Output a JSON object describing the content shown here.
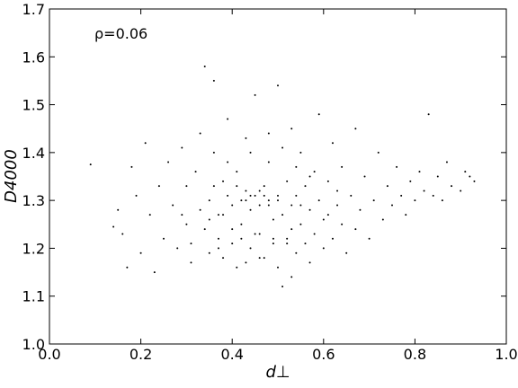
{
  "chart_data": {
    "type": "scatter",
    "xlabel": "d⊥",
    "ylabel": "D4000",
    "annotation": "ρ=0.06",
    "color": "#000000",
    "xlim": [
      0,
      1
    ],
    "ylim": [
      1,
      1.7
    ],
    "xticks": [
      {
        "value": 0,
        "label": "0.0"
      },
      0.2,
      0.4,
      0.6,
      0.8,
      {
        "value": 1,
        "label": "1.0"
      }
    ],
    "yticks": [
      {
        "value": 1,
        "label": "1.0"
      },
      1.1,
      1.2,
      1.3,
      1.4,
      1.5,
      1.6,
      1.7
    ],
    "x": [
      0.09,
      0.14,
      0.15,
      0.16,
      0.17,
      0.18,
      0.19,
      0.2,
      0.21,
      0.22,
      0.23,
      0.24,
      0.25,
      0.26,
      0.27,
      0.28,
      0.29,
      0.3,
      0.3,
      0.31,
      0.32,
      0.33,
      0.34,
      0.34,
      0.35,
      0.35,
      0.36,
      0.36,
      0.37,
      0.37,
      0.38,
      0.38,
      0.39,
      0.39,
      0.4,
      0.4,
      0.41,
      0.41,
      0.42,
      0.42,
      0.43,
      0.43,
      0.44,
      0.44,
      0.45,
      0.45,
      0.46,
      0.46,
      0.47,
      0.47,
      0.48,
      0.48,
      0.49,
      0.49,
      0.5,
      0.5,
      0.51,
      0.51,
      0.52,
      0.52,
      0.53,
      0.53,
      0.54,
      0.54,
      0.55,
      0.55,
      0.56,
      0.56,
      0.57,
      0.57,
      0.58,
      0.58,
      0.59,
      0.59,
      0.6,
      0.6,
      0.61,
      0.62,
      0.62,
      0.63,
      0.64,
      0.64,
      0.65,
      0.66,
      0.67,
      0.67,
      0.68,
      0.69,
      0.7,
      0.71,
      0.72,
      0.73,
      0.74,
      0.75,
      0.76,
      0.77,
      0.78,
      0.79,
      0.8,
      0.81,
      0.82,
      0.83,
      0.84,
      0.85,
      0.86,
      0.87,
      0.88,
      0.9,
      0.91,
      0.92,
      0.93,
      0.44,
      0.46,
      0.48,
      0.43,
      0.47,
      0.5,
      0.42,
      0.45,
      0.49,
      0.52,
      0.4,
      0.38,
      0.53,
      0.55,
      0.41,
      0.36,
      0.33,
      0.31,
      0.29,
      0.57,
      0.61,
      0.63,
      0.39,
      0.44,
      0.48,
      0.51,
      0.54,
      0.46,
      0.5,
      0.53,
      0.43,
      0.37,
      0.35
    ],
    "values": [
      1.375,
      1.245,
      1.28,
      1.23,
      1.16,
      1.37,
      1.31,
      1.19,
      1.42,
      1.27,
      1.15,
      1.33,
      1.22,
      1.38,
      1.29,
      1.2,
      1.41,
      1.25,
      1.33,
      1.17,
      1.36,
      1.44,
      1.58,
      1.24,
      1.3,
      1.19,
      1.55,
      1.4,
      1.27,
      1.22,
      1.34,
      1.18,
      1.31,
      1.47,
      1.29,
      1.21,
      1.36,
      1.16,
      1.3,
      1.25,
      1.32,
      1.43,
      1.28,
      1.2,
      1.31,
      1.52,
      1.29,
      1.23,
      1.33,
      1.18,
      1.3,
      1.38,
      1.26,
      1.21,
      1.31,
      1.54,
      1.12,
      1.27,
      1.34,
      1.22,
      1.29,
      1.45,
      1.19,
      1.31,
      1.25,
      1.4,
      1.21,
      1.33,
      1.28,
      1.17,
      1.36,
      1.23,
      1.3,
      1.48,
      1.26,
      1.2,
      1.34,
      1.22,
      1.42,
      1.29,
      1.25,
      1.37,
      1.19,
      1.31,
      1.45,
      1.24,
      1.28,
      1.35,
      1.22,
      1.3,
      1.4,
      1.26,
      1.33,
      1.29,
      1.37,
      1.31,
      1.27,
      1.34,
      1.3,
      1.36,
      1.32,
      1.48,
      1.31,
      1.35,
      1.3,
      1.38,
      1.33,
      1.32,
      1.36,
      1.35,
      1.34,
      1.31,
      1.32,
      1.29,
      1.3,
      1.31,
      1.3,
      1.22,
      1.23,
      1.22,
      1.21,
      1.24,
      1.27,
      1.24,
      1.29,
      1.33,
      1.33,
      1.28,
      1.21,
      1.27,
      1.35,
      1.27,
      1.32,
      1.38,
      1.4,
      1.44,
      1.41,
      1.37,
      1.18,
      1.16,
      1.14,
      1.17,
      1.2,
      1.26
    ]
  }
}
